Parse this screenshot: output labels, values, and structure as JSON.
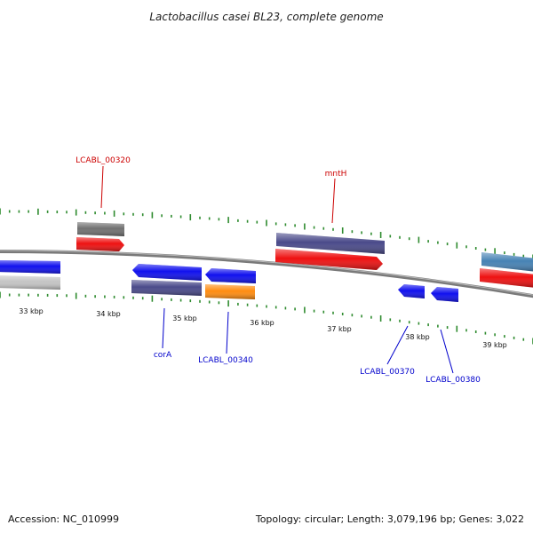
{
  "title": "Lactobacillus casei BL23, complete genome",
  "footer": {
    "accession": "Accession: NC_010999",
    "topology": "Topology: circular; Length: 3,079,196 bp; Genes: 3,022"
  },
  "colors": {
    "backbone": "#7a7a7a",
    "tick_green": "#2e8b2e",
    "label_red": "#cc0000",
    "label_blue": "#0000cc"
  },
  "tick_labels": [
    "33 kbp",
    "34 kbp",
    "35 kbp",
    "36 kbp",
    "37 kbp",
    "38 kbp",
    "39 kbp"
  ],
  "genes": [
    {
      "id": "g-blue-left",
      "color": "#1010ee"
    },
    {
      "id": "g-gray-left",
      "color": "#c4c4c4"
    },
    {
      "id": "g-lcabl00320-gray",
      "color": "#707070"
    },
    {
      "id": "g-lcabl00320",
      "color": "#ee1111"
    },
    {
      "id": "g-cora",
      "color": "#1010ee"
    },
    {
      "id": "g-cora-purple",
      "color": "#4a4a8a"
    },
    {
      "id": "g-lcabl00340-blue",
      "color": "#1010ee"
    },
    {
      "id": "g-lcabl00340",
      "color": "#ff8c10"
    },
    {
      "id": "g-mnth-purple",
      "color": "#4a4a8a"
    },
    {
      "id": "g-mnth",
      "color": "#ee1111"
    },
    {
      "id": "g-lcabl00370",
      "color": "#1010ee"
    },
    {
      "id": "g-lcabl00380",
      "color": "#1010ee"
    },
    {
      "id": "g-steel-right",
      "color": "#4682b4"
    },
    {
      "id": "g-red-right",
      "color": "#ee1111"
    }
  ],
  "gene_labels": [
    {
      "text": "LCABL_00320",
      "color": "#cc0000"
    },
    {
      "text": "mntH",
      "color": "#cc0000"
    },
    {
      "text": "corA",
      "color": "#0000cc"
    },
    {
      "text": "LCABL_00340",
      "color": "#0000cc"
    },
    {
      "text": "LCABL_00370",
      "color": "#0000cc"
    },
    {
      "text": "LCABL_00380",
      "color": "#0000cc"
    }
  ]
}
